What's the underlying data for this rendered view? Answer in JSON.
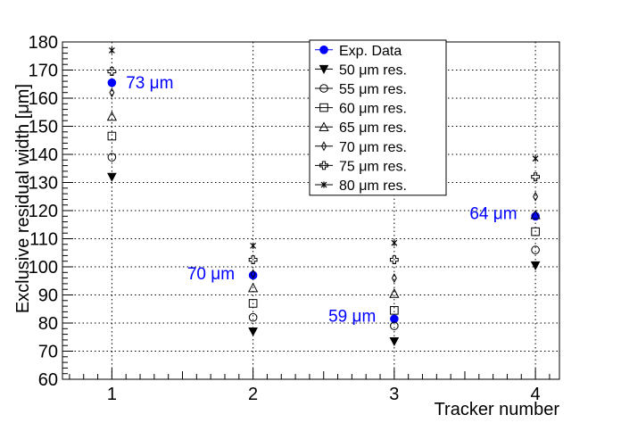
{
  "chart_data": {
    "type": "scatter",
    "title": "",
    "xlabel": "Tracker number",
    "ylabel": "Exclusive residual width [μm]",
    "xlim": [
      0.65,
      4.17
    ],
    "ylim": [
      60,
      180
    ],
    "xticks": [
      1,
      2,
      3,
      4
    ],
    "xtick_labels": [
      "1",
      "2",
      "3",
      "4"
    ],
    "yticks": [
      60,
      70,
      80,
      90,
      100,
      110,
      120,
      130,
      140,
      150,
      160,
      170,
      180
    ],
    "ytick_labels": [
      "60",
      "70",
      "80",
      "90",
      "100",
      "110",
      "120",
      "130",
      "140",
      "150",
      "160",
      "170",
      "180"
    ],
    "grid": true,
    "legend_position": "top-center",
    "series": [
      {
        "name": "Exp. Data",
        "marker": "filled-circle",
        "color": "#0000ff",
        "x": [
          1,
          2,
          3,
          4
        ],
        "values": [
          165.5,
          97,
          81.5,
          118
        ]
      },
      {
        "name": "50 μm res.",
        "marker": "filled-triangle-down",
        "color": "#000000",
        "x": [
          1,
          2,
          3,
          4
        ],
        "values": [
          132,
          77,
          73.5,
          100.5
        ]
      },
      {
        "name": "55 μm res.",
        "marker": "open-circle",
        "color": "#000000",
        "x": [
          1,
          2,
          3,
          4
        ],
        "values": [
          139,
          82,
          79,
          106
        ]
      },
      {
        "name": "60 μm res.",
        "marker": "open-square",
        "color": "#000000",
        "x": [
          1,
          2,
          3,
          4
        ],
        "values": [
          146.5,
          87,
          84.5,
          112.5
        ]
      },
      {
        "name": "65 μm res.",
        "marker": "open-triangle-up",
        "color": "#000000",
        "x": [
          1,
          2,
          3,
          4
        ],
        "values": [
          153.5,
          92.5,
          90.5,
          118.5
        ]
      },
      {
        "name": "70 μm res.",
        "marker": "open-diamond",
        "color": "#000000",
        "x": [
          1,
          2,
          3,
          4
        ],
        "values": [
          162,
          97.5,
          96,
          125
        ]
      },
      {
        "name": "75 μm res.",
        "marker": "open-cross",
        "color": "#000000",
        "x": [
          1,
          2,
          3,
          4
        ],
        "values": [
          169.5,
          102.5,
          102.5,
          132
        ]
      },
      {
        "name": "80 μm res.",
        "marker": "star",
        "color": "#000000",
        "x": [
          1,
          2,
          3,
          4
        ],
        "values": [
          177,
          107.5,
          108.5,
          138.5
        ]
      }
    ],
    "annotations": [
      {
        "text": "73 μm",
        "x": 1.1,
        "y": 163.5,
        "color": "#0000ff",
        "align": "start"
      },
      {
        "text": "70 μm",
        "x": 1.87,
        "y": 95.5,
        "color": "#0000ff",
        "align": "end"
      },
      {
        "text": "59 μm",
        "x": 2.87,
        "y": 80.5,
        "color": "#0000ff",
        "align": "end"
      },
      {
        "text": "64 μm",
        "x": 3.87,
        "y": 117,
        "color": "#0000ff",
        "align": "end"
      }
    ]
  }
}
